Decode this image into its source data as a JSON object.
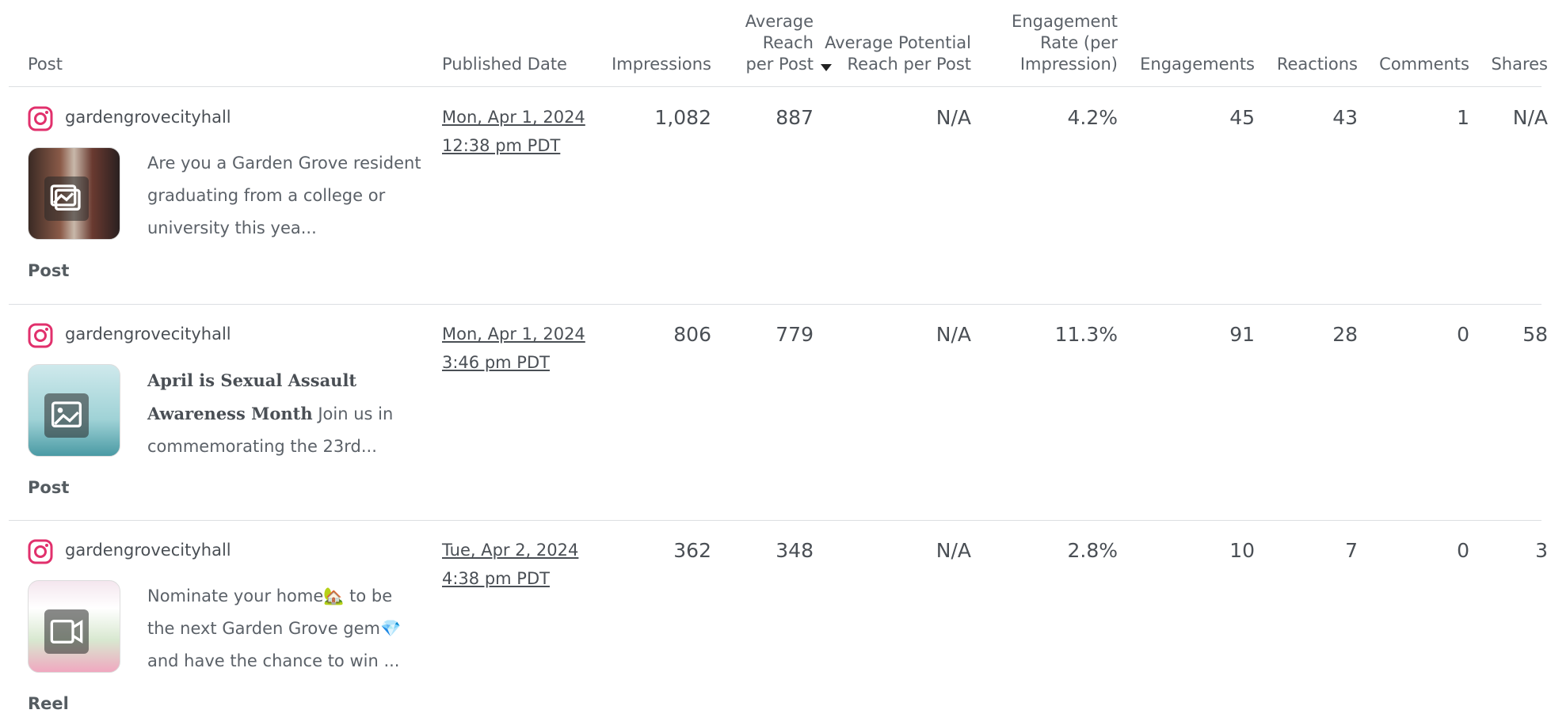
{
  "table": {
    "headers": [
      "Post",
      "Published Date",
      "Impressions",
      "Average Reach per Post",
      "Average Potential Reach per Post",
      "Engagement Rate (per Impression)",
      "Engagements",
      "Reactions",
      "Comments",
      "Shares"
    ],
    "rows": [
      {
        "account": "gardengrovecityhall",
        "caption_bold": null,
        "caption": "Are you a Garden Grove resident graduating from a college or university this yea...",
        "type": "Post",
        "date": "Mon, Apr 1, 2024",
        "time": "12:38 pm PDT",
        "cells": [
          "1,082",
          "887",
          "N/A",
          "4.2%",
          "45",
          "43",
          "1",
          "N/A"
        ]
      },
      {
        "account": "gardengrovecityhall",
        "caption_bold": "April is Sexual Assault Awareness Month",
        "caption": "Join us in commemorating the 23rd...",
        "type": "Post",
        "date": "Mon, Apr 1, 2024",
        "time": "3:46 pm PDT",
        "cells": [
          "806",
          "779",
          "N/A",
          "11.3%",
          "91",
          "28",
          "0",
          "58"
        ]
      },
      {
        "account": "gardengrovecityhall",
        "caption_bold": null,
        "caption": "Nominate your home🏡 to be the next Garden Grove gem💎 and have the chance to win ...",
        "type": "Reel",
        "date": "Tue, Apr 2, 2024",
        "time": "4:38 pm PDT",
        "cells": [
          "362",
          "348",
          "N/A",
          "2.8%",
          "10",
          "7",
          "0",
          "3"
        ]
      }
    ]
  }
}
